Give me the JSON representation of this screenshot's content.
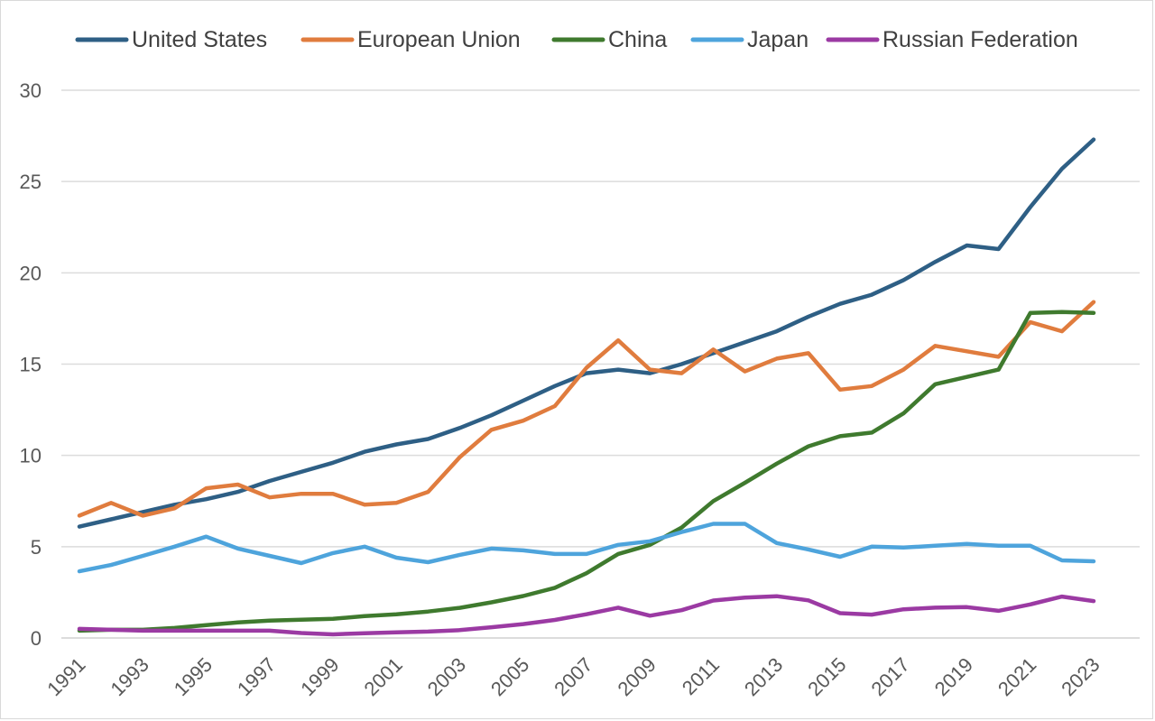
{
  "chart_data": {
    "type": "line",
    "title": "",
    "xlabel": "",
    "ylabel": "",
    "ylim": [
      0,
      30
    ],
    "y_ticks": [
      0,
      5,
      10,
      15,
      20,
      25,
      30
    ],
    "x_tick_labels": [
      "1991",
      "1993",
      "1995",
      "1997",
      "1999",
      "2001",
      "2003",
      "2005",
      "2007",
      "2009",
      "2011",
      "2013",
      "2015",
      "2017",
      "2019",
      "2021",
      "2023"
    ],
    "x": [
      1991,
      1992,
      1993,
      1994,
      1995,
      1996,
      1997,
      1998,
      1999,
      2000,
      2001,
      2002,
      2003,
      2004,
      2005,
      2006,
      2007,
      2008,
      2009,
      2010,
      2011,
      2012,
      2013,
      2014,
      2015,
      2016,
      2017,
      2018,
      2019,
      2020,
      2021,
      2022,
      2023
    ],
    "grid": true,
    "legend_position": "top",
    "series": [
      {
        "name": "United States",
        "color": "#2e5f85",
        "values": [
          6.1,
          6.5,
          6.9,
          7.3,
          7.6,
          8.0,
          8.6,
          9.1,
          9.6,
          10.2,
          10.6,
          10.9,
          11.5,
          12.2,
          13.0,
          13.8,
          14.5,
          14.7,
          14.5,
          15.0,
          15.6,
          16.2,
          16.8,
          17.6,
          18.3,
          18.8,
          19.6,
          20.6,
          21.5,
          21.3,
          23.6,
          25.7,
          27.3
        ]
      },
      {
        "name": "European Union",
        "color": "#e07c3e",
        "values": [
          6.7,
          7.4,
          6.7,
          7.1,
          8.2,
          8.4,
          7.7,
          7.9,
          7.9,
          7.3,
          7.4,
          8.0,
          9.9,
          11.4,
          11.9,
          12.7,
          14.8,
          16.3,
          14.7,
          14.5,
          15.8,
          14.6,
          15.3,
          15.6,
          13.6,
          13.8,
          14.7,
          16.0,
          15.7,
          15.4,
          17.3,
          16.8,
          18.4
        ]
      },
      {
        "name": "China",
        "color": "#3f7a2e",
        "values": [
          0.4,
          0.45,
          0.45,
          0.55,
          0.7,
          0.85,
          0.95,
          1.0,
          1.05,
          1.2,
          1.3,
          1.45,
          1.65,
          1.95,
          2.3,
          2.75,
          3.55,
          4.6,
          5.1,
          6.05,
          7.5,
          8.5,
          9.55,
          10.5,
          11.05,
          11.25,
          12.3,
          13.9,
          14.3,
          14.7,
          17.8,
          17.85,
          17.8
        ]
      },
      {
        "name": "Japan",
        "color": "#4ea4dc",
        "values": [
          3.65,
          4.0,
          4.5,
          5.0,
          5.55,
          4.9,
          4.5,
          4.1,
          4.65,
          5.0,
          4.4,
          4.15,
          4.55,
          4.9,
          4.8,
          4.6,
          4.6,
          5.1,
          5.3,
          5.8,
          6.25,
          6.25,
          5.2,
          4.85,
          4.45,
          5.0,
          4.95,
          5.05,
          5.15,
          5.05,
          5.05,
          4.25,
          4.2
        ]
      },
      {
        "name": "Russian Federation",
        "color": "#9b3aa3",
        "values": [
          0.5,
          0.45,
          0.4,
          0.4,
          0.4,
          0.4,
          0.4,
          0.27,
          0.2,
          0.26,
          0.31,
          0.35,
          0.43,
          0.59,
          0.76,
          0.99,
          1.3,
          1.66,
          1.22,
          1.52,
          2.05,
          2.21,
          2.29,
          2.06,
          1.36,
          1.28,
          1.57,
          1.66,
          1.69,
          1.49,
          1.84,
          2.27,
          2.02
        ]
      }
    ]
  }
}
